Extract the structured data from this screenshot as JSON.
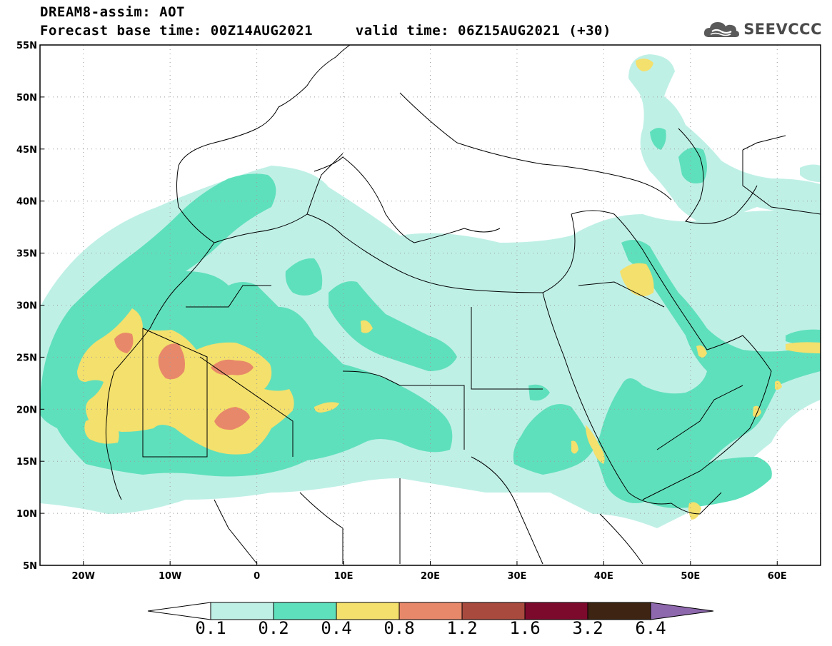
{
  "header": {
    "title": "DREAM8-assim: AOT",
    "base_time_label": "Forecast base time: 00Z14AUG2021",
    "valid_time_label": "valid time: 06Z15AUG2021 (+30)"
  },
  "logo": {
    "text": "SEEVCCC",
    "icon": "cloud-logo-icon"
  },
  "map": {
    "lon_range": [
      -25,
      65
    ],
    "lat_range": [
      5,
      55
    ],
    "lon_ticks": [
      -20,
      -10,
      0,
      10,
      20,
      30,
      40,
      50,
      60
    ],
    "lon_labels": [
      "20W",
      "10W",
      "0",
      "10E",
      "20E",
      "30E",
      "40E",
      "50E",
      "60E"
    ],
    "lat_ticks": [
      55,
      50,
      45,
      40,
      35,
      30,
      25,
      20,
      15,
      10,
      5
    ],
    "lat_labels": [
      "55N",
      "50N",
      "45N",
      "40N",
      "35N",
      "30N",
      "25N",
      "20N",
      "15N",
      "10N",
      "5N"
    ],
    "grid": "dotted"
  },
  "colorbar": {
    "levels": [
      "0.1",
      "0.2",
      "0.4",
      "0.8",
      "1.2",
      "1.6",
      "3.2",
      "6.4"
    ],
    "colors": [
      "#bff0e6",
      "#5fe0bc",
      "#f4e06c",
      "#e8886a",
      "#a84a3e",
      "#7c0a2c",
      "#3e2412",
      "#8e68ac"
    ],
    "under_color": "#ffffff",
    "over_color": "#8e68ac"
  },
  "fields": {
    "level_colors": {
      "c1": "#bff0e6",
      "c2": "#5fe0bc",
      "c3": "#f4e06c",
      "c4": "#e8886a"
    }
  }
}
